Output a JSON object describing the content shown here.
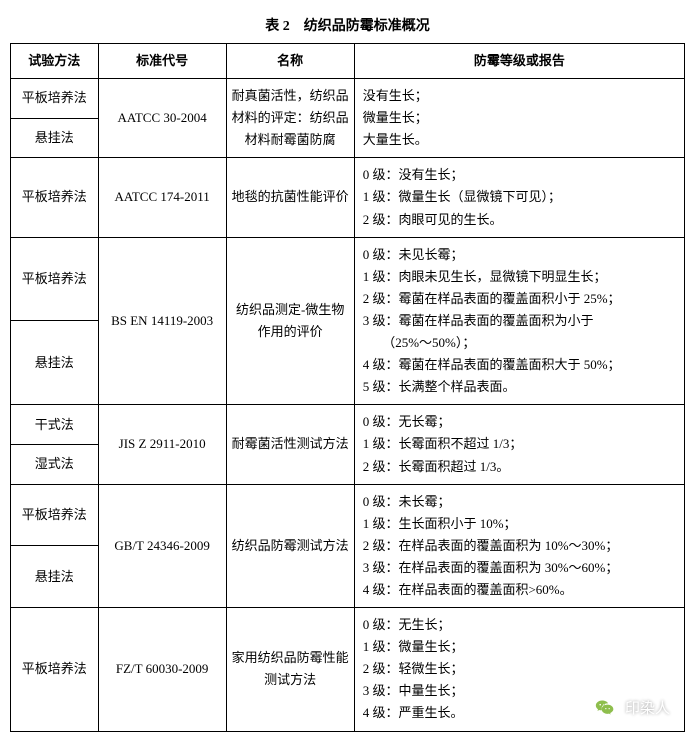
{
  "title": "表 2　纺织品防霉标准概况",
  "headers": {
    "method": "试验方法",
    "standard": "标准代号",
    "name": "名称",
    "grade": "防霉等级或报告"
  },
  "rows": {
    "r1": {
      "method1": "平板培养法",
      "method2": "悬挂法",
      "standard": "AATCC 30-2004",
      "name": "耐真菌活性，纺织品材料的评定：纺织品材料耐霉菌防腐",
      "grade": "没有生长；\n微量生长；\n大量生长。"
    },
    "r2": {
      "method": "平板培养法",
      "standard": "AATCC 174-2011",
      "name": "地毯的抗菌性能评价",
      "grade": "0 级：没有生长；\n1 级：微量生长（显微镜下可见）；\n2 级：肉眼可见的生长。"
    },
    "r3": {
      "method1": "平板培养法",
      "method2": "悬挂法",
      "standard": "BS EN 14119-2003",
      "name": "纺织品测定-微生物作用的评价",
      "grade": "0 级：未见长霉；\n1 级：肉眼未见生长，显微镜下明显生长；\n2 级：霉菌在样品表面的覆盖面积小于 25%；\n3 级：霉菌在样品表面的覆盖面积为小于\n　　（25%～50%）；\n4 级：霉菌在样品表面的覆盖面积大于 50%；\n5 级：长满整个样品表面。"
    },
    "r4": {
      "method1": "干式法",
      "method2": "湿式法",
      "standard": "JIS Z 2911-2010",
      "name": "耐霉菌活性测试方法",
      "grade": "0 级：无长霉；\n1 级：长霉面积不超过 1/3；\n2 级：长霉面积超过 1/3。"
    },
    "r5": {
      "method1": "平板培养法",
      "method2": "悬挂法",
      "standard": "GB/T 24346-2009",
      "name": "纺织品防霉测试方法",
      "grade": "0 级：未长霉；\n1 级：生长面积小于 10%；\n2 级：在样品表面的覆盖面积为 10%～30%；\n3 级：在样品表面的覆盖面积为 30%～60%；\n4 级：在样品表面的覆盖面积>60%。"
    },
    "r6": {
      "method": "平板培养法",
      "standard": "FZ/T 60030-2009",
      "name": "家用纺织品防霉性能测试方法",
      "grade": "0 级：无生长；\n1 级：微量生长；\n2 级：轻微生长；\n3 级：中量生长；\n4 级：严重生长。"
    }
  },
  "watermark": "印染人"
}
